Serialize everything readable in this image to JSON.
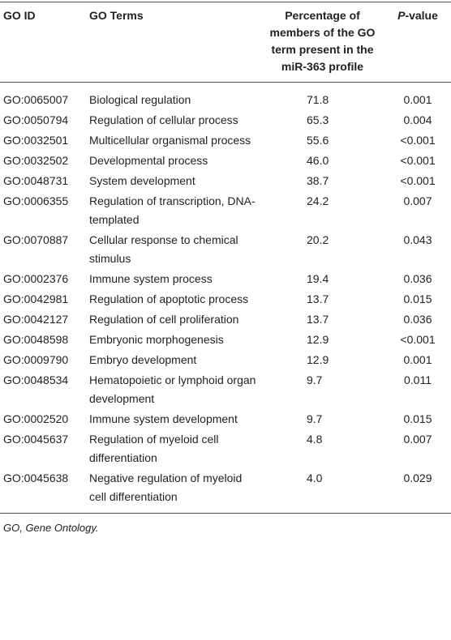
{
  "table": {
    "headers": [
      "GO ID",
      "GO Terms",
      "Percentage of members of the GO term present in the miR-363 profile",
      "P-value"
    ],
    "rows": [
      [
        "GO:0065007",
        "Biological regulation",
        "71.8",
        "0.001"
      ],
      [
        "GO:0050794",
        "Regulation of cellular process",
        "65.3",
        "0.004"
      ],
      [
        "GO:0032501",
        "Multicellular organismal process",
        "55.6",
        "<0.001"
      ],
      [
        "GO:0032502",
        "Developmental process",
        "46.0",
        "<0.001"
      ],
      [
        "GO:0048731",
        "System development",
        "38.7",
        "<0.001"
      ],
      [
        "GO:0006355",
        "Regulation of transcription, DNA-templated",
        "24.2",
        "0.007"
      ],
      [
        "GO:0070887",
        "Cellular response to chemical stimulus",
        "20.2",
        "0.043"
      ],
      [
        "GO:0002376",
        "Immune system process",
        "19.4",
        "0.036"
      ],
      [
        "GO:0042981",
        "Regulation of apoptotic process",
        "13.7",
        "0.015"
      ],
      [
        "GO:0042127",
        "Regulation of cell proliferation",
        "13.7",
        "0.036"
      ],
      [
        "GO:0048598",
        "Embryonic morphogenesis",
        "12.9",
        "<0.001"
      ],
      [
        "GO:0009790",
        "Embryo development",
        "12.9",
        "0.001"
      ],
      [
        "GO:0048534",
        "Hematopoietic or lymphoid organ development",
        "9.7",
        "0.011"
      ],
      [
        "GO:0002520",
        "Immune system development",
        "9.7",
        "0.015"
      ],
      [
        "GO:0045637",
        "Regulation of myeloid cell differentiation",
        "4.8",
        "0.007"
      ],
      [
        "GO:0045638",
        "Negative regulation of myeloid cell differentiation",
        "4.0",
        "0.029"
      ]
    ]
  },
  "footnote": "GO, Gene Ontology."
}
